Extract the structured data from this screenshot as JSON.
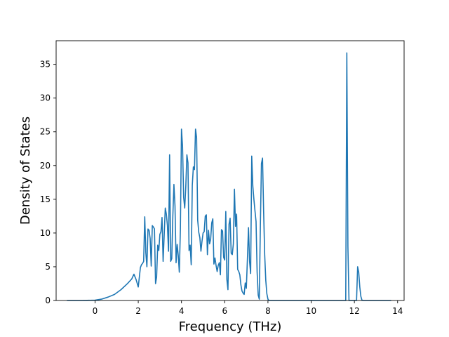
{
  "chart_data": {
    "type": "line",
    "title": "",
    "xlabel": "Frequency (THz)",
    "ylabel": "Density of States",
    "xlim": [
      -1.8,
      14.3
    ],
    "ylim": [
      0,
      38.5
    ],
    "xticks": [
      0,
      2,
      4,
      6,
      8,
      10,
      12,
      14
    ],
    "xtick_labels": [
      "0",
      "2",
      "4",
      "6",
      "8",
      "10",
      "12",
      "14"
    ],
    "yticks": [
      0,
      5,
      10,
      15,
      20,
      25,
      30,
      35
    ],
    "ytick_labels": [
      "0",
      "5",
      "10",
      "15",
      "20",
      "25",
      "30",
      "35"
    ],
    "grid": false,
    "line_color": "#1f77b4",
    "series": [
      {
        "x": [
          -1.3,
          -0.6,
          0.0,
          0.3,
          0.6,
          0.9,
          1.2,
          1.5,
          1.7,
          1.8,
          1.9,
          2.0,
          2.1,
          2.15,
          2.2,
          2.25,
          2.3,
          2.35,
          2.4,
          2.45,
          2.5,
          2.55,
          2.6,
          2.65,
          2.7,
          2.75,
          2.8,
          2.85,
          2.9,
          2.95,
          3.0,
          3.05,
          3.1,
          3.15,
          3.2,
          3.25,
          3.3,
          3.35,
          3.4,
          3.45,
          3.5,
          3.55,
          3.6,
          3.65,
          3.7,
          3.75,
          3.8,
          3.85,
          3.9,
          3.95,
          4.0,
          4.05,
          4.1,
          4.15,
          4.2,
          4.25,
          4.3,
          4.35,
          4.4,
          4.45,
          4.5,
          4.55,
          4.6,
          4.65,
          4.7,
          4.75,
          4.8,
          4.85,
          4.9,
          4.95,
          5.0,
          5.05,
          5.1,
          5.15,
          5.2,
          5.25,
          5.3,
          5.35,
          5.4,
          5.45,
          5.5,
          5.55,
          5.6,
          5.65,
          5.7,
          5.75,
          5.8,
          5.85,
          5.9,
          5.95,
          6.0,
          6.05,
          6.1,
          6.15,
          6.2,
          6.25,
          6.3,
          6.35,
          6.4,
          6.45,
          6.5,
          6.55,
          6.6,
          6.65,
          6.7,
          6.75,
          6.8,
          6.85,
          6.9,
          6.95,
          7.0,
          7.05,
          7.1,
          7.15,
          7.2,
          7.25,
          7.3,
          7.35,
          7.4,
          7.45,
          7.5,
          7.55,
          7.6,
          7.65,
          7.7,
          7.75,
          7.8,
          7.85,
          7.9,
          7.95,
          8.0,
          8.05,
          8.1,
          8.15,
          8.2,
          8.25,
          8.3,
          8.35,
          8.4,
          8.45,
          8.5,
          8.55,
          8.6,
          8.65,
          8.7,
          8.75,
          8.8,
          8.85,
          8.9,
          8.95,
          9.0,
          9.05,
          9.1,
          9.15,
          9.2,
          9.25,
          9.3,
          9.35,
          9.4,
          9.45,
          9.5,
          9.55,
          9.6,
          9.65,
          9.7,
          9.75,
          9.8,
          9.85,
          9.9,
          9.95,
          10.0,
          10.05,
          10.1,
          10.15,
          10.2,
          10.3,
          10.5,
          11.0,
          11.5,
          11.6,
          11.65,
          11.7,
          11.75,
          11.8,
          11.85,
          11.9,
          12.0,
          12.1,
          12.15,
          12.2,
          12.25,
          12.3,
          12.35,
          12.4,
          12.45,
          12.5,
          12.6,
          13.0,
          13.5,
          13.7
        ],
        "y": [
          0,
          0,
          0.05,
          0.2,
          0.5,
          0.9,
          1.6,
          2.5,
          3.2,
          3.9,
          3.1,
          2.0,
          4.9,
          5.3,
          5.5,
          5.8,
          12.4,
          7.1,
          5.0,
          10.6,
          10.4,
          9.2,
          5.1,
          11.1,
          10.9,
          10.6,
          2.5,
          3.5,
          8.2,
          7.4,
          9.8,
          10.2,
          12.3,
          5.8,
          9.7,
          13.7,
          12.8,
          11.1,
          7.3,
          21.6,
          5.8,
          6.2,
          12.5,
          17.2,
          14.0,
          5.6,
          8.3,
          6.7,
          4.2,
          10.6,
          25.4,
          22.8,
          15.3,
          13.7,
          16.9,
          21.6,
          20.4,
          7.4,
          8.2,
          5.3,
          17.1,
          19.8,
          19.4,
          25.4,
          24.1,
          11.9,
          10.1,
          9.3,
          7.3,
          8.8,
          10.0,
          10.2,
          12.5,
          12.7,
          6.8,
          10.4,
          8.4,
          9.1,
          11.5,
          12.1,
          5.4,
          6.3,
          5.2,
          4.3,
          5.2,
          5.6,
          3.8,
          10.5,
          10.3,
          6.4,
          6.0,
          13.2,
          3.1,
          1.6,
          11.3,
          12.2,
          7.0,
          6.8,
          8.4,
          16.5,
          11.0,
          12.8,
          4.6,
          4.3,
          3.8,
          2.3,
          1.4,
          1.1,
          0.9,
          2.6,
          1.8,
          6.1,
          10.8,
          5.8,
          4.0,
          21.4,
          17.0,
          15.0,
          13.3,
          11.7,
          4.2,
          0.8,
          0.2,
          11.1,
          20.3,
          21.1,
          13.3,
          6.8,
          3.0,
          1.0,
          0.2,
          0.0,
          0.0,
          0.0,
          0.0,
          0.0,
          0.0,
          0.0,
          0.0,
          0.0,
          0.0,
          0.0,
          0.0,
          0.0,
          0.0,
          0.0,
          0.0,
          0.0,
          0.0,
          0.0,
          0.0,
          0.0,
          0.0,
          0.0,
          0.0,
          0.0,
          0.0,
          0.0,
          0.0,
          0.0,
          0.0,
          0.0,
          0.0,
          0.0,
          0.0,
          0.0,
          0.0,
          0.0,
          0.0,
          0.0,
          0.0,
          0.0,
          0.0,
          0.0,
          0.0,
          0.0,
          0.0,
          0.0,
          0.0,
          0.0,
          36.7,
          8.0,
          0.0,
          0.0,
          0.0,
          0.0,
          0.0,
          0.0,
          5.0,
          4.2,
          2.0,
          0.6,
          0.05,
          0.0,
          0.0,
          0.0,
          0.0,
          0.0,
          0.0,
          0.0
        ]
      }
    ]
  }
}
